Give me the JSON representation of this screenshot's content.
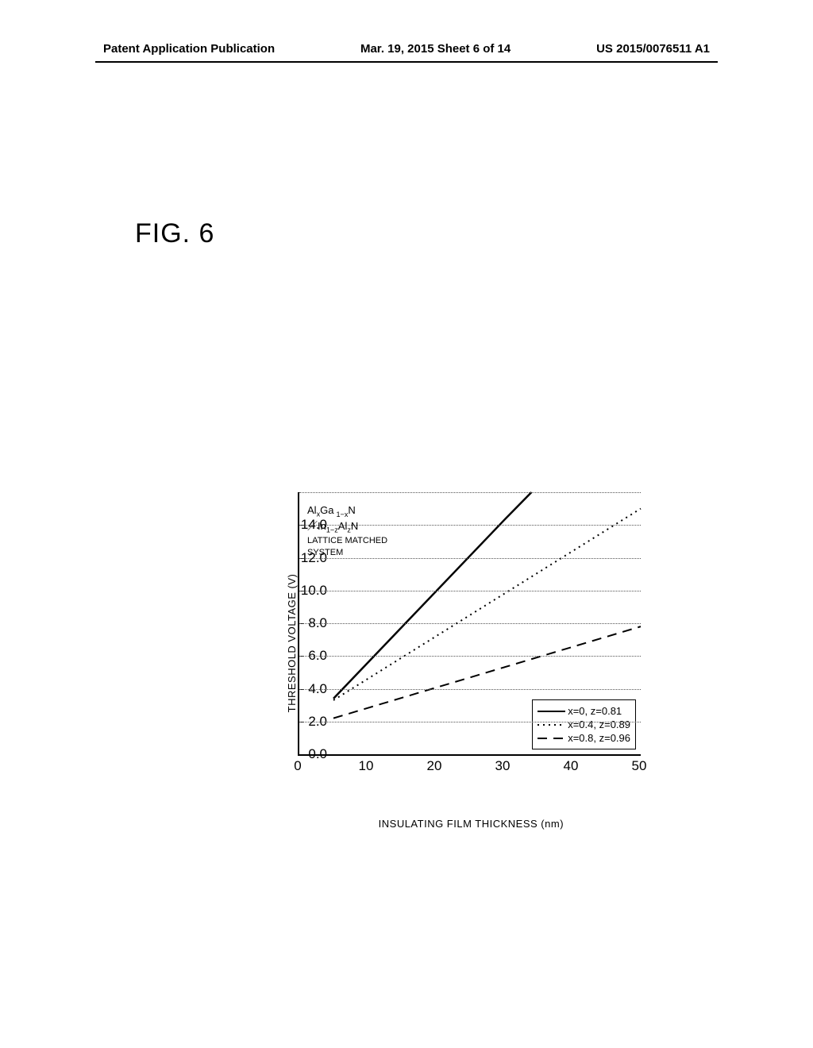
{
  "header": {
    "left": "Patent Application Publication",
    "center": "Mar. 19, 2015  Sheet 6 of 14",
    "right": "US 2015/0076511 A1"
  },
  "figure": {
    "label": "FIG. 6",
    "y_axis_label": "THRESHOLD VOLTAGE  (V)",
    "x_axis_label": "INSULATING FILM THICKNESS  (nm)",
    "y_ticks": [
      "0.0",
      "2.0",
      "4.0",
      "6.0",
      "8.0",
      "10.0",
      "12.0",
      "14.0"
    ],
    "x_ticks": [
      "0",
      "10",
      "20",
      "30",
      "40",
      "50"
    ],
    "xlim": [
      0,
      50
    ],
    "ylim": [
      0,
      16
    ],
    "grid_y": [
      2,
      4,
      6,
      8,
      10,
      12,
      14,
      16
    ],
    "annotation": {
      "line1_a": "Al",
      "line1_x": "x",
      "line1_b": "Ga",
      "line1_1mx": "1−x",
      "line1_c": "N",
      "line2_slash": "／",
      "line2_a": "In",
      "line2_1mz": "1−z",
      "line2_b": "Al",
      "line2_z": "z",
      "line2_c": "N",
      "line3": "LATTICE MATCHED",
      "line4": "SYSTEM"
    },
    "legend": {
      "items": [
        {
          "label": "x=0, z=0.81",
          "style": "solid"
        },
        {
          "label": "x=0.4, z=0.89",
          "style": "dot"
        },
        {
          "label": "x=0.8, z=0.96",
          "style": "dash"
        }
      ]
    },
    "series": [
      {
        "name": "x=0, z=0.81",
        "style": "solid",
        "color": "#000000",
        "width": 2.5,
        "points": [
          [
            5,
            3.4
          ],
          [
            30,
            14.3
          ],
          [
            34,
            16.0
          ]
        ]
      },
      {
        "name": "x=0.4, z=0.89",
        "style": "dot",
        "color": "#000000",
        "width": 2,
        "points": [
          [
            5,
            3.3
          ],
          [
            50,
            15.0
          ]
        ]
      },
      {
        "name": "x=0.8, z=0.96",
        "style": "dash",
        "color": "#000000",
        "width": 2,
        "points": [
          [
            5,
            2.2
          ],
          [
            50,
            7.8
          ]
        ]
      }
    ]
  }
}
